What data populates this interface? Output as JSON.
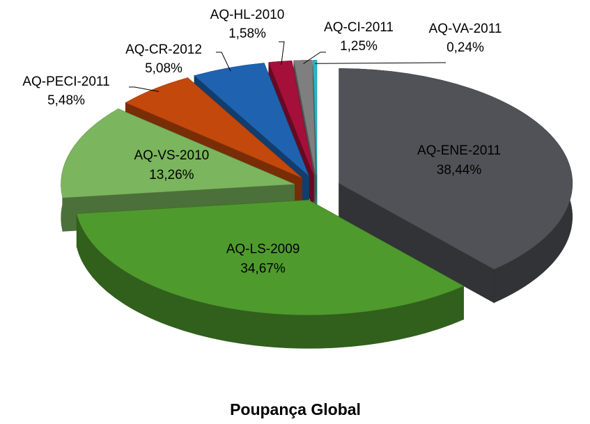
{
  "chart_data": {
    "type": "pie",
    "title": "Poupança Global",
    "categories": [
      "AQ-ENE-2011",
      "AQ-LS-2009",
      "AQ-VS-2010",
      "AQ-PECI-2011",
      "AQ-CR-2012",
      "AQ-HL-2010",
      "AQ-CI-2011",
      "AQ-VA-2011"
    ],
    "values": [
      38.44,
      34.67,
      13.26,
      5.48,
      5.08,
      1.58,
      1.25,
      0.24
    ],
    "value_labels": [
      "38,44%",
      "34,67%",
      "13,26%",
      "5,48%",
      "5,08%",
      "1,58%",
      "1,25%",
      "0,24%"
    ],
    "colors": [
      "#515257",
      "#4f9a2d",
      "#7bb55d",
      "#c2480b",
      "#1f63b0",
      "#a5103a",
      "#7f7f7f",
      "#2bb4c8"
    ]
  }
}
